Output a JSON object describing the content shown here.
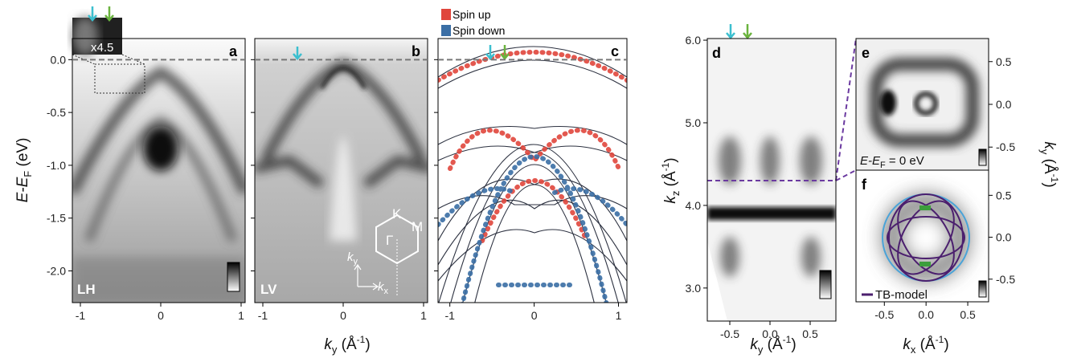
{
  "inset_label": "x4.5",
  "panels": [
    {
      "label": "a",
      "mode": "LH",
      "xlim": [
        -1.1,
        1.05
      ],
      "ylim": [
        -2.3,
        0.2
      ],
      "xticks": [
        -1,
        0,
        1
      ],
      "yticks": [
        {
          "value": 0,
          "label": "0.0"
        },
        {
          "value": -0.5,
          "label": "-0.5"
        },
        {
          "value": -1,
          "label": "-1.0"
        },
        {
          "value": -1.5,
          "label": "-1.5"
        },
        {
          "value": -2,
          "label": "-2.0"
        }
      ]
    },
    {
      "label": "b",
      "mode": "LV",
      "xlim": [
        -1.1,
        1.05
      ],
      "ylim": [
        -2.3,
        0.2
      ],
      "xticks": [
        -1,
        0,
        1
      ],
      "bz": {
        "K": "K",
        "M": "M",
        "G": "Γ",
        "ky": {
          "base": "k",
          "sub": "y"
        },
        "kx": {
          "base": "k",
          "sub": "x"
        }
      }
    },
    {
      "label": "c",
      "xlim": [
        -1.14,
        1.1
      ],
      "ylim": [
        -2.3,
        0.2
      ],
      "xticks": [
        -1,
        0,
        1
      ],
      "legend": [
        {
          "name": "Spin up",
          "color": "#e0463c"
        },
        {
          "name": "Spin down",
          "color": "#3a6ea5"
        }
      ]
    },
    {
      "label": "d",
      "xlim": [
        -0.78,
        0.82
      ],
      "ylim": [
        2.6,
        6.02
      ],
      "xticks": [
        -0.5,
        {
          "value": 0,
          "label": "0.0"
        },
        0.5
      ],
      "yticks": [
        {
          "value": 6,
          "label": "6.0"
        },
        {
          "value": 5,
          "label": "5.0"
        },
        {
          "value": 4,
          "label": "4.0"
        },
        {
          "value": 3,
          "label": "3.0"
        }
      ]
    },
    {
      "label": "e",
      "xlim": [
        -0.84,
        0.75
      ],
      "ylim": [
        -0.77,
        0.77
      ],
      "yticks": [
        0.5,
        {
          "value": 0,
          "label": "0.0"
        },
        -0.5
      ],
      "note": {
        "base": "E-E",
        "sub": "F",
        "rest": " = 0 eV"
      }
    },
    {
      "label": "f",
      "xlim": [
        -0.84,
        0.75
      ],
      "ylim": [
        -0.77,
        0.8
      ],
      "xticks": [
        -0.5,
        {
          "value": 0,
          "label": "0.0"
        },
        0.5
      ],
      "yticks": [
        0.5,
        {
          "value": 0,
          "label": "0.0"
        },
        -0.5
      ],
      "legend": "TB-model"
    }
  ],
  "axis_labels": {
    "energy": {
      "base": "E-E",
      "sub": "F",
      "rest": " (eV)"
    },
    "ky_abc": {
      "base": "k",
      "sub": "y",
      "rest": " (Å",
      "sup": "-1",
      "end": ")"
    },
    "ky_d": {
      "base": "k",
      "sub": "y",
      "rest": " (Å",
      "sup": "-1",
      "end": ")"
    },
    "kz": {
      "base": "k",
      "sub": "z",
      "rest": " (Å",
      "sup": "-1",
      "end": ")"
    },
    "ky_right": {
      "base": "k",
      "sub": "y",
      "rest": " (Å",
      "sup": "-1",
      "end": ")"
    },
    "kx": {
      "base": "k",
      "sub": "x",
      "rest": " (Å",
      "sup": "-1",
      "end": ")"
    }
  }
}
